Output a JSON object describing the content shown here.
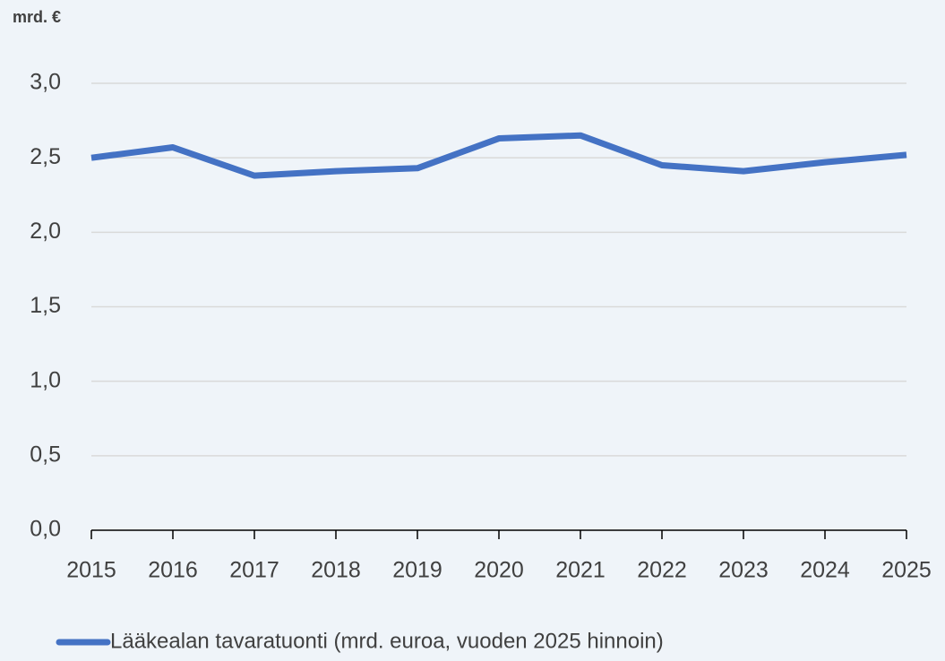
{
  "chart_data": {
    "type": "line",
    "y_axis_label": "mrd. €",
    "categories": [
      "2015",
      "2016",
      "2017",
      "2018",
      "2019",
      "2020",
      "2021",
      "2022",
      "2023",
      "2024",
      "2025"
    ],
    "series": [
      {
        "name": "Lääkealan tavaratuonti (mrd. euroa, vuoden 2025 hinnoin)",
        "color": "#4472c4",
        "values": [
          2.5,
          2.57,
          2.38,
          2.41,
          2.43,
          2.63,
          2.65,
          2.45,
          2.41,
          2.47,
          2.52
        ]
      }
    ],
    "ylim": [
      0,
      3
    ],
    "yticks": [
      {
        "value": 0,
        "label": "0,0"
      },
      {
        "value": 0.5,
        "label": "0,5"
      },
      {
        "value": 1,
        "label": "1,0"
      },
      {
        "value": 1.5,
        "label": "1,5"
      },
      {
        "value": 2,
        "label": "2,0"
      },
      {
        "value": 2.5,
        "label": "2,5"
      },
      {
        "value": 3,
        "label": "3,0"
      }
    ],
    "grid": true,
    "legend": "bottom"
  }
}
